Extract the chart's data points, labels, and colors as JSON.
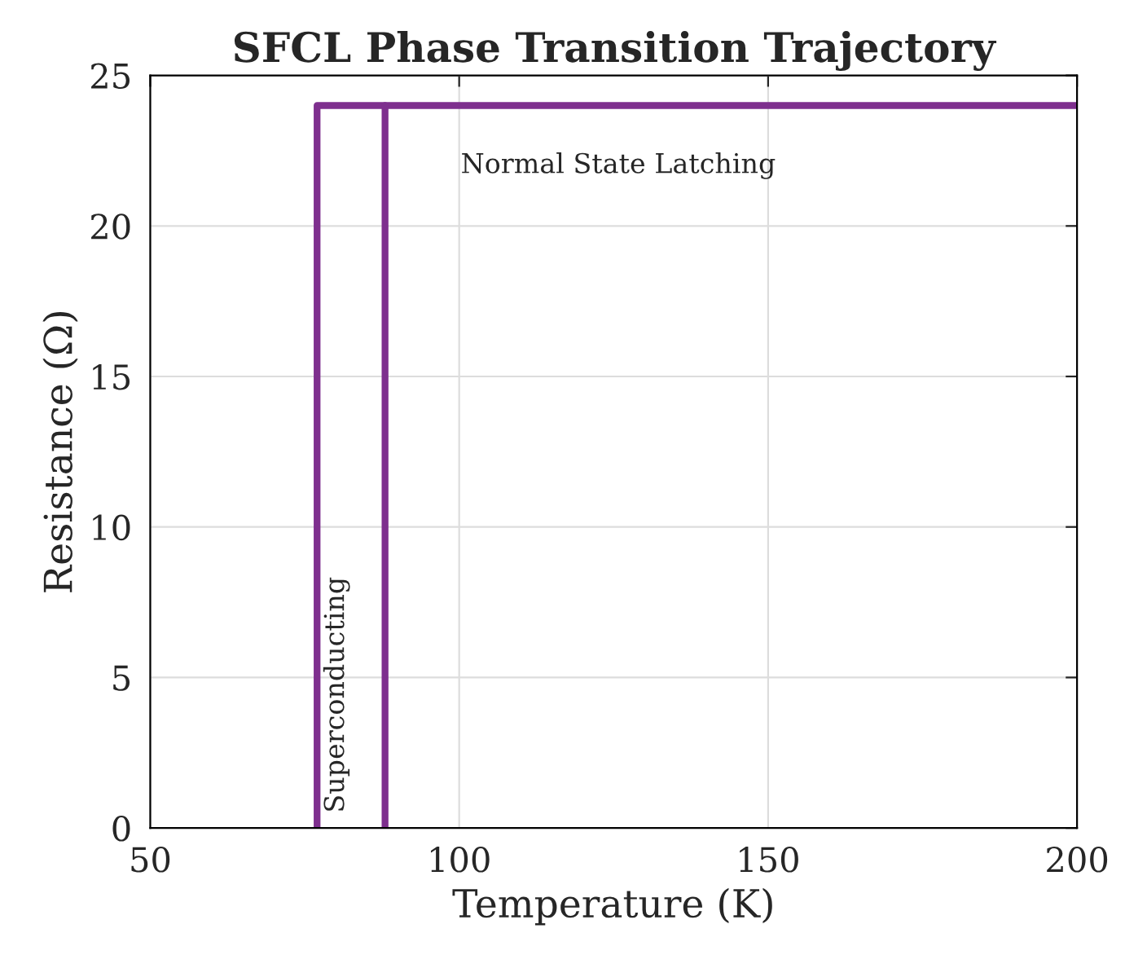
{
  "chart_data": {
    "type": "line",
    "title": "SFCL Phase Transition Trajectory",
    "xlabel": "Temperature (K)",
    "ylabel": "Resistance (Ω)",
    "series": [
      {
        "color": "#7e2f8e",
        "x": [
          77,
          77,
          200
        ],
        "values": [
          0,
          24,
          24
        ]
      },
      {
        "color": "#7e2f8e",
        "x": [
          88,
          88
        ],
        "values": [
          0,
          24
        ]
      }
    ],
    "xlim": [
      50,
      200
    ],
    "xticks": [
      50,
      100,
      150,
      200
    ],
    "ylim": [
      0,
      25
    ],
    "yticks": [
      0,
      5,
      10,
      15,
      20,
      25
    ],
    "grid": true,
    "line_style": "solid",
    "marker": "none",
    "annotations": [
      "Normal State Latching",
      {
        "text": "Superconducting",
        "x": 78,
        "y": 0.5
      }
    ]
  }
}
